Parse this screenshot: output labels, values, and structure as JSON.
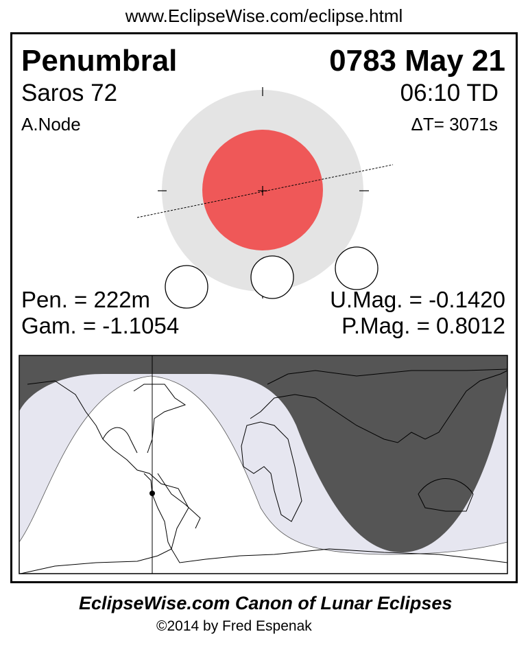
{
  "header_url": "www.EclipseWise.com/eclipse.html",
  "eclipse": {
    "type": "Penumbral",
    "date": "0783 May 21",
    "saros": "Saros  72",
    "time": "06:10 TD",
    "node": "A.Node",
    "delta_t": "ΔT=   3071s",
    "pen_duration": "Pen. = 222m",
    "gamma": "Gam. = -1.1054",
    "umbral_mag": "U.Mag. = -0.1420",
    "penumbral_mag": "P.Mag. = 0.8012"
  },
  "colors": {
    "penumbra": "#e4e4e4",
    "umbra": "#ef5858",
    "map_night": "#555555",
    "map_penumbral": "#e6e6f0"
  },
  "footer": {
    "title": "EclipseWise.com Canon of Lunar Eclipses",
    "copyright": "©2014 by Fred Espenak"
  }
}
